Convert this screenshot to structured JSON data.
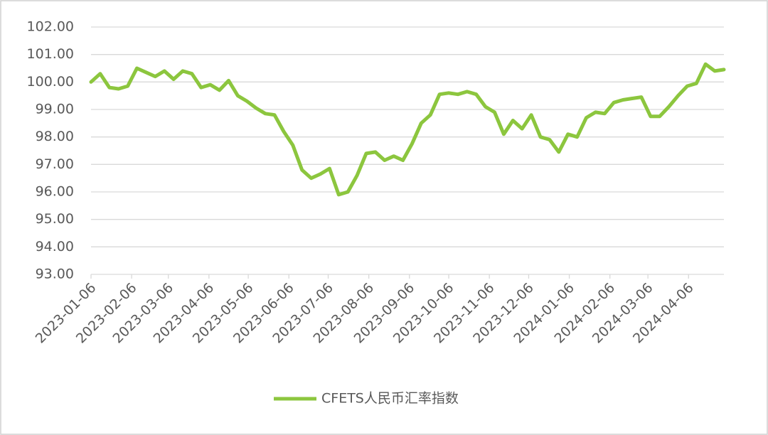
{
  "chart_data": {
    "type": "line",
    "x": [
      "2023-01-06",
      "2023-01-13",
      "2023-01-20",
      "2023-01-27",
      "2023-02-03",
      "2023-02-10",
      "2023-02-17",
      "2023-02-24",
      "2023-03-03",
      "2023-03-10",
      "2023-03-17",
      "2023-03-24",
      "2023-03-31",
      "2023-04-07",
      "2023-04-14",
      "2023-04-21",
      "2023-04-28",
      "2023-05-05",
      "2023-05-12",
      "2023-05-19",
      "2023-05-26",
      "2023-06-02",
      "2023-06-09",
      "2023-06-16",
      "2023-06-23",
      "2023-06-30",
      "2023-07-07",
      "2023-07-14",
      "2023-07-21",
      "2023-07-28",
      "2023-08-04",
      "2023-08-11",
      "2023-08-18",
      "2023-08-25",
      "2023-09-01",
      "2023-09-08",
      "2023-09-15",
      "2023-09-22",
      "2023-09-29",
      "2023-10-06",
      "2023-10-13",
      "2023-10-20",
      "2023-10-27",
      "2023-11-03",
      "2023-11-10",
      "2023-11-17",
      "2023-11-24",
      "2023-12-01",
      "2023-12-08",
      "2023-12-15",
      "2023-12-22",
      "2023-12-29",
      "2024-01-05",
      "2024-01-12",
      "2024-01-19",
      "2024-01-26",
      "2024-02-02",
      "2024-02-09",
      "2024-02-16",
      "2024-02-23",
      "2024-03-01",
      "2024-03-08",
      "2024-03-15",
      "2024-03-22",
      "2024-03-29",
      "2024-04-05",
      "2024-04-12",
      "2024-04-19",
      "2024-04-26",
      "2024-05-03"
    ],
    "series": [
      {
        "name": "CFETS人民币汇率指数",
        "color": "#8cc63e",
        "values": [
          100.0,
          100.3,
          99.8,
          99.75,
          99.85,
          100.5,
          100.35,
          100.2,
          100.4,
          100.1,
          100.4,
          100.3,
          99.8,
          99.9,
          99.7,
          100.05,
          99.5,
          99.3,
          99.05,
          98.85,
          98.8,
          98.2,
          97.7,
          96.8,
          96.5,
          96.65,
          96.85,
          95.9,
          96.0,
          96.6,
          97.4,
          97.45,
          97.15,
          97.3,
          97.15,
          97.75,
          98.5,
          98.8,
          99.55,
          99.6,
          99.55,
          99.65,
          99.55,
          99.1,
          98.9,
          98.1,
          98.6,
          98.3,
          98.8,
          98.0,
          97.9,
          97.45,
          98.1,
          98.0,
          98.7,
          98.9,
          98.85,
          99.25,
          99.35,
          99.4,
          99.45,
          98.75,
          98.75,
          99.1,
          99.5,
          99.85,
          99.95,
          100.65,
          100.4,
          100.45
        ]
      }
    ],
    "xlim": [
      "2023-01-06",
      "2024-05-03"
    ],
    "xticks": [
      "2023-01-06",
      "2023-02-06",
      "2023-03-06",
      "2023-04-06",
      "2023-05-06",
      "2023-06-06",
      "2023-07-06",
      "2023-08-06",
      "2023-09-06",
      "2023-10-06",
      "2023-11-06",
      "2023-12-06",
      "2024-01-06",
      "2024-02-06",
      "2024-03-06",
      "2024-04-06"
    ],
    "ylim": [
      93,
      102
    ],
    "yticks": [
      {
        "value": 93,
        "label": "93.00"
      },
      {
        "value": 94,
        "label": "94.00"
      },
      {
        "value": 95,
        "label": "95.00"
      },
      {
        "value": 96,
        "label": "96.00"
      },
      {
        "value": 97,
        "label": "97.00"
      },
      {
        "value": 98,
        "label": "98.00"
      },
      {
        "value": 99,
        "label": "99.00"
      },
      {
        "value": 100,
        "label": "100.00"
      },
      {
        "value": 101,
        "label": "101.00"
      },
      {
        "value": 102,
        "label": "102.00"
      }
    ],
    "grid": true,
    "legend": "bottom"
  }
}
